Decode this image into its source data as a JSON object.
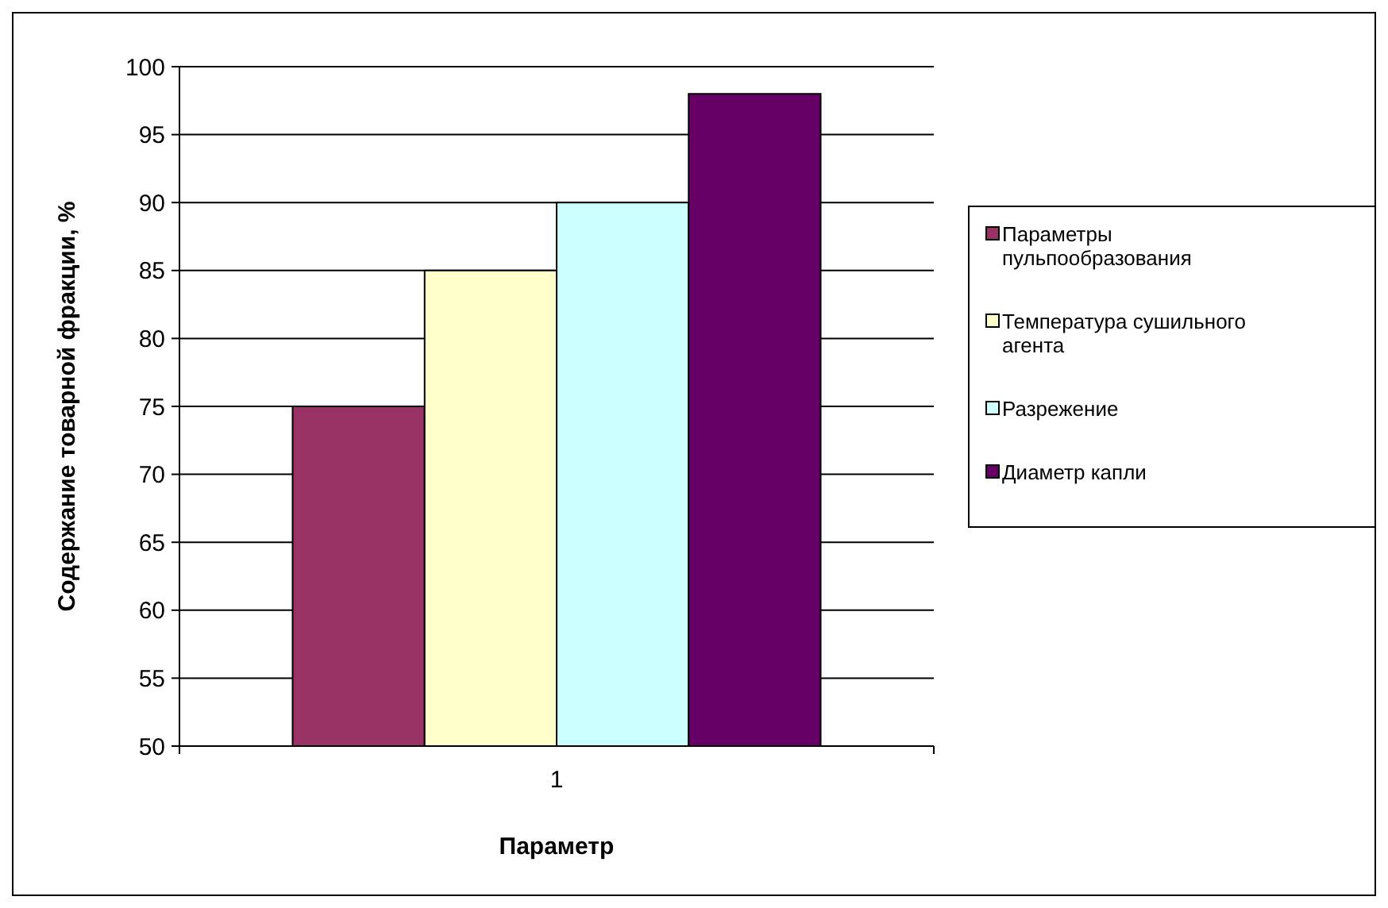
{
  "chart_data": {
    "type": "bar",
    "xlabel": "Параметр",
    "ylabel": "Содержание товарной фракции, %",
    "categories": [
      "1"
    ],
    "series": [
      {
        "name": "Параметры пульпообразования",
        "color": "#993366",
        "values": [
          75
        ]
      },
      {
        "name": "Температура сушильного агента",
        "color": "#ffffcc",
        "values": [
          85
        ]
      },
      {
        "name": "Разрежение",
        "color": "#ccffff",
        "values": [
          90
        ]
      },
      {
        "name": "Диаметр капли",
        "color": "#660066",
        "values": [
          98
        ]
      }
    ],
    "ylim": [
      50,
      100
    ],
    "yticks": [
      50,
      55,
      60,
      65,
      70,
      75,
      80,
      85,
      90,
      95,
      100
    ],
    "grid": "y",
    "legend": "right"
  }
}
